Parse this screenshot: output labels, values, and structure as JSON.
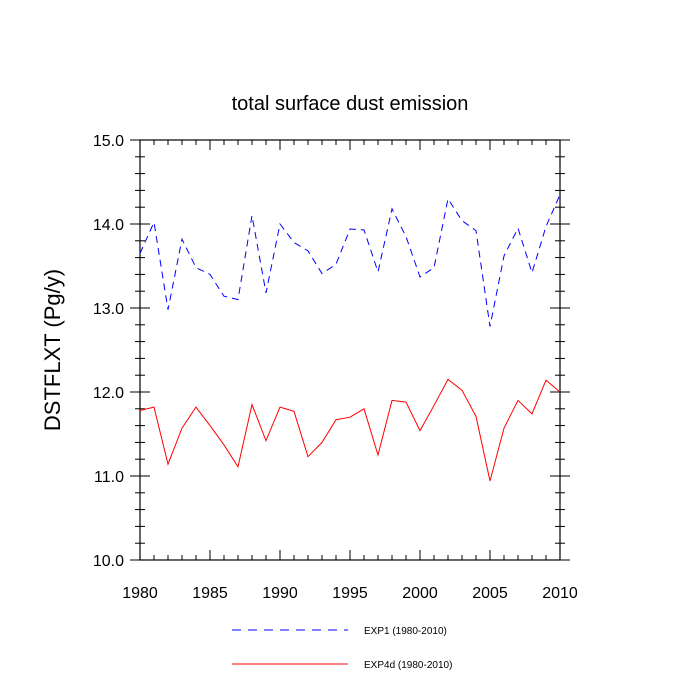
{
  "chart_data": {
    "type": "line",
    "title": "total surface dust emission",
    "xlabel": "",
    "ylabel": "DSTFLXT  (Pg/y)",
    "xlim": [
      1980,
      2010
    ],
    "ylim": [
      10.0,
      15.0
    ],
    "x_ticks": [
      1980,
      1985,
      1990,
      1995,
      2000,
      2005,
      2010
    ],
    "x_tick_labels": [
      "1980",
      "1985",
      "1990",
      "1995",
      "2000",
      "2005",
      "2010"
    ],
    "y_ticks": [
      10,
      11,
      12,
      13,
      14,
      15
    ],
    "y_tick_labels": [
      "10.0",
      "11.0",
      "12.0",
      "13.0",
      "14.0",
      "15.0"
    ],
    "grid": false,
    "legend_position": "bottom",
    "x": [
      1980,
      1981,
      1982,
      1983,
      1984,
      1985,
      1986,
      1987,
      1988,
      1989,
      1990,
      1991,
      1992,
      1993,
      1994,
      1995,
      1996,
      1997,
      1998,
      1999,
      2000,
      2001,
      2002,
      2003,
      2004,
      2005,
      2006,
      2007,
      2008,
      2009,
      2010
    ],
    "series": [
      {
        "name": "EXP1 (1980-2010)",
        "color": "#0000ff",
        "style": "dashed",
        "values": [
          13.65,
          14.02,
          12.98,
          13.82,
          13.48,
          13.4,
          13.14,
          13.1,
          14.1,
          13.18,
          14.0,
          13.78,
          13.68,
          13.41,
          13.52,
          13.94,
          13.93,
          13.43,
          14.18,
          13.85,
          13.37,
          13.48,
          14.3,
          14.04,
          13.92,
          12.78,
          13.62,
          13.95,
          13.42,
          13.97,
          14.35
        ]
      },
      {
        "name": "EXP4d (1980-2010)",
        "color": "#ff0000",
        "style": "solid",
        "values": [
          11.78,
          11.82,
          11.14,
          11.57,
          11.82,
          11.6,
          11.37,
          11.11,
          11.85,
          11.42,
          11.82,
          11.77,
          11.23,
          11.4,
          11.67,
          11.7,
          11.8,
          11.25,
          11.9,
          11.88,
          11.54,
          11.84,
          12.15,
          12.02,
          11.71,
          10.94,
          11.57,
          11.9,
          11.74,
          12.14,
          12.0
        ]
      }
    ]
  }
}
